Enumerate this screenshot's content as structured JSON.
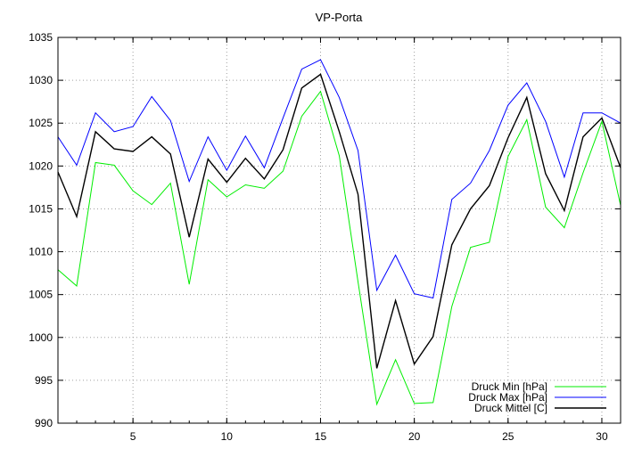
{
  "chart_data": {
    "type": "line",
    "title": "VP-Porta",
    "xlabel": "",
    "ylabel": "",
    "xlim": [
      1,
      31
    ],
    "ylim": [
      990,
      1035
    ],
    "xticks": [
      5,
      10,
      15,
      20,
      25,
      30
    ],
    "yticks": [
      990,
      995,
      1000,
      1005,
      1010,
      1015,
      1020,
      1025,
      1030,
      1035
    ],
    "grid": true,
    "legend_position": "bottom-right",
    "x": [
      1,
      2,
      3,
      4,
      5,
      6,
      7,
      8,
      9,
      10,
      11,
      12,
      13,
      14,
      15,
      16,
      17,
      18,
      19,
      20,
      21,
      22,
      23,
      24,
      25,
      26,
      27,
      28,
      29,
      30,
      31
    ],
    "series": [
      {
        "name": "Druck Min [hPa]",
        "color": "#00ee00",
        "values": [
          1007.9,
          1006.0,
          1020.4,
          1020.1,
          1017.1,
          1015.5,
          1018.0,
          1006.2,
          1018.4,
          1016.4,
          1017.8,
          1017.4,
          1019.4,
          1025.8,
          1028.7,
          1021.2,
          1006.5,
          992.2,
          997.4,
          992.3,
          992.4,
          1003.6,
          1010.5,
          1011.1,
          1021.1,
          1025.4,
          1015.2,
          1012.8,
          1019.2,
          1025.2,
          1015.4
        ]
      },
      {
        "name": "Druck Max [hPa]",
        "color": "#0000ff",
        "values": [
          1023.4,
          1020.1,
          1026.2,
          1024.0,
          1024.6,
          1028.1,
          1025.3,
          1018.2,
          1023.4,
          1019.5,
          1023.5,
          1019.8,
          1025.6,
          1031.3,
          1032.4,
          1028.0,
          1021.8,
          1005.5,
          1009.6,
          1005.1,
          1004.6,
          1016.1,
          1018.0,
          1021.8,
          1027.1,
          1029.7,
          1025.2,
          1018.7,
          1026.2,
          1026.2,
          1025.0
        ]
      },
      {
        "name": "Druck Mittel [C]",
        "color": "#000000",
        "values": [
          1019.3,
          1014.1,
          1024.0,
          1022.0,
          1021.7,
          1023.4,
          1021.4,
          1011.7,
          1020.8,
          1018.1,
          1020.9,
          1018.5,
          1021.9,
          1029.1,
          1030.7,
          1024.0,
          1016.7,
          996.4,
          1004.3,
          996.9,
          1000.1,
          1010.8,
          1015.0,
          1017.7,
          1023.3,
          1028.0,
          1019.1,
          1014.8,
          1023.4,
          1025.6,
          1019.8
        ]
      }
    ]
  }
}
